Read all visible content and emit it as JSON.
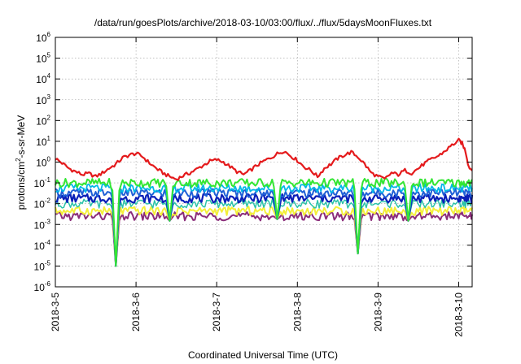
{
  "chart_data": {
    "type": "line",
    "title": "/data/run/goesPlots/archive/2018-03-10/03:00/flux/../flux/5daysMoonFluxes.txt",
    "xlabel": "Coordinated Universal Time (UTC)",
    "ylabel_parts": [
      "protons/cm",
      "2",
      "-s-sr-MeV"
    ],
    "yscale": "log",
    "ylim": [
      1e-06,
      1000000.0
    ],
    "y_ticks": [
      {
        "base": "10",
        "exp": "-6",
        "v": 1e-06
      },
      {
        "base": "10",
        "exp": "-5",
        "v": 1e-05
      },
      {
        "base": "10",
        "exp": "-4",
        "v": 0.0001
      },
      {
        "base": "10",
        "exp": "-3",
        "v": 0.001
      },
      {
        "base": "10",
        "exp": "-2",
        "v": 0.01
      },
      {
        "base": "10",
        "exp": "-1",
        "v": 0.1
      },
      {
        "base": "10",
        "exp": "0",
        "v": 1
      },
      {
        "base": "10",
        "exp": "1",
        "v": 10
      },
      {
        "base": "10",
        "exp": "2",
        "v": 100
      },
      {
        "base": "10",
        "exp": "3",
        "v": 1000
      },
      {
        "base": "10",
        "exp": "4",
        "v": 10000
      },
      {
        "base": "10",
        "exp": "5",
        "v": 100000
      },
      {
        "base": "10",
        "exp": "6",
        "v": 1000000
      }
    ],
    "xlim": [
      "2018-03-05",
      "2018-03-10 04:00"
    ],
    "x_ticks": [
      {
        "label": "2018-3-5",
        "x": "2018-03-05"
      },
      {
        "label": "2018-3-6",
        "x": "2018-03-06"
      },
      {
        "label": "2018-3-7",
        "x": "2018-03-07"
      },
      {
        "label": "2018-3-8",
        "x": "2018-03-08"
      },
      {
        "label": "2018-3-9",
        "x": "2018-03-09"
      },
      {
        "label": "2018-3-10",
        "x": "2018-03-10"
      }
    ],
    "grid": true,
    "series": [
      {
        "color": "#e41a1c",
        "width": 2.2,
        "x": [
          "2018-03-05 00:00",
          "2018-03-05 02:00",
          "2018-03-05 04:00",
          "2018-03-05 06:00",
          "2018-03-05 08:00",
          "2018-03-05 10:00",
          "2018-03-05 12:00",
          "2018-03-05 14:00",
          "2018-03-05 16:00",
          "2018-03-05 18:00",
          "2018-03-05 20:00",
          "2018-03-05 22:00",
          "2018-03-06 00:00",
          "2018-03-06 02:00",
          "2018-03-06 04:00",
          "2018-03-06 06:00",
          "2018-03-06 08:00",
          "2018-03-06 10:00",
          "2018-03-06 12:00",
          "2018-03-06 14:00",
          "2018-03-06 16:00",
          "2018-03-06 18:00",
          "2018-03-06 20:00",
          "2018-03-06 22:00",
          "2018-03-07 00:00",
          "2018-03-07 02:00",
          "2018-03-07 04:00",
          "2018-03-07 06:00",
          "2018-03-07 08:00",
          "2018-03-07 10:00",
          "2018-03-07 12:00",
          "2018-03-07 14:00",
          "2018-03-07 16:00",
          "2018-03-07 18:00",
          "2018-03-07 20:00",
          "2018-03-07 22:00",
          "2018-03-08 00:00",
          "2018-03-08 02:00",
          "2018-03-08 04:00",
          "2018-03-08 06:00",
          "2018-03-08 08:00",
          "2018-03-08 10:00",
          "2018-03-08 12:00",
          "2018-03-08 14:00",
          "2018-03-08 16:00",
          "2018-03-08 18:00",
          "2018-03-08 20:00",
          "2018-03-08 22:00",
          "2018-03-09 00:00",
          "2018-03-09 02:00",
          "2018-03-09 04:00",
          "2018-03-09 06:00",
          "2018-03-09 08:00",
          "2018-03-09 10:00",
          "2018-03-09 12:00",
          "2018-03-09 14:00",
          "2018-03-09 16:00",
          "2018-03-09 18:00",
          "2018-03-09 20:00",
          "2018-03-09 22:00",
          "2018-03-10 00:00",
          "2018-03-10 01:00",
          "2018-03-10 02:00",
          "2018-03-10 03:00",
          "2018-03-10 04:00"
        ],
        "y": [
          1.5,
          0.9,
          0.5,
          0.35,
          0.25,
          0.28,
          0.2,
          0.3,
          0.5,
          0.8,
          1.6,
          2.2,
          2.6,
          1.8,
          0.9,
          0.5,
          0.3,
          0.2,
          0.15,
          0.22,
          0.3,
          0.45,
          0.7,
          1.1,
          1.3,
          1.0,
          0.6,
          0.35,
          0.25,
          0.4,
          0.7,
          1.1,
          1.6,
          2.5,
          3.5,
          2.0,
          1.2,
          0.6,
          0.4,
          0.2,
          0.5,
          0.8,
          1.5,
          2.2,
          3.0,
          1.8,
          0.8,
          0.3,
          0.2,
          0.15,
          0.3,
          0.25,
          0.4,
          0.3,
          0.5,
          0.9,
          1.4,
          2.0,
          3.5,
          6.5,
          11,
          8,
          3.5,
          0.6,
          0.4
        ]
      },
      {
        "color": "#33e633",
        "width": 2.0,
        "base": 0.1
      },
      {
        "color": "#00b7e8",
        "width": 1.8,
        "base": 0.055
      },
      {
        "color": "#1f5fd6",
        "width": 2.0,
        "base": 0.033
      },
      {
        "color": "#0b1fb8",
        "width": 2.2,
        "base": 0.018
      },
      {
        "color": "#2cc3a9",
        "width": 1.5,
        "base": 0.01
      },
      {
        "color": "#f4f03a",
        "width": 2.0,
        "base": 0.0045
      },
      {
        "color": "#8b2d7a",
        "width": 2.0,
        "base": 0.0025
      }
    ],
    "dips": [
      {
        "x": "2018-03-05 18:00",
        "y": 1e-05
      },
      {
        "x": "2018-03-06 10:00",
        "y": 0.0015
      },
      {
        "x": "2018-03-07 18:00",
        "y": 0.0018
      },
      {
        "x": "2018-03-08 18:00",
        "y": 4e-05
      },
      {
        "x": "2018-03-09 09:00",
        "y": 0.0015
      }
    ]
  }
}
